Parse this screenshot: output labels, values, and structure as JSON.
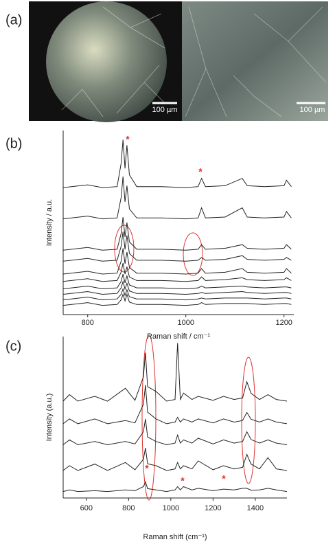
{
  "image_panel": {
    "label": "(a)",
    "scale_bars": [
      "100 µm",
      "100 µm"
    ]
  },
  "chart_data": [
    {
      "type": "line",
      "label": "(b)",
      "x_label": "Raman shift / cm⁻¹",
      "y_label": "Intensity / a.u.",
      "color": "#222222",
      "annotation_color": "#e0302a",
      "annotations": [
        "*",
        "*"
      ],
      "xlim": [
        750,
        1220
      ],
      "xticks": [
        800,
        1000,
        1200
      ],
      "ylim": [
        0,
        10
      ],
      "x": [
        750,
        800,
        830,
        860,
        868,
        872,
        876,
        880,
        885,
        900,
        950,
        1000,
        1025,
        1032,
        1040,
        1080,
        1115,
        1125,
        1160,
        1200,
        1205,
        1215
      ],
      "series": [
        {
          "values": [
            0.5,
            0.65,
            0.5,
            0.55,
            0.8,
            1.1,
            0.74,
            1.1,
            0.68,
            0.55,
            0.55,
            0.5,
            0.55,
            0.65,
            0.55,
            0.6,
            0.6,
            0.6,
            0.55,
            0.6,
            0.6,
            0.55
          ]
        },
        {
          "values": [
            0.8,
            0.95,
            0.8,
            0.85,
            1.1,
            1.4,
            1.04,
            1.35,
            0.97,
            0.85,
            0.85,
            0.8,
            0.85,
            0.9,
            0.85,
            0.9,
            0.9,
            0.9,
            0.85,
            0.9,
            0.9,
            0.85
          ]
        },
        {
          "values": [
            1.1,
            1.25,
            1.1,
            1.15,
            1.45,
            1.8,
            1.38,
            1.7,
            1.28,
            1.15,
            1.15,
            1.1,
            1.15,
            1.2,
            1.15,
            1.2,
            1.25,
            1.2,
            1.15,
            1.2,
            1.2,
            1.15
          ]
        },
        {
          "values": [
            1.4,
            1.55,
            1.4,
            1.45,
            1.8,
            2.2,
            1.72,
            2.1,
            1.61,
            1.45,
            1.45,
            1.4,
            1.45,
            1.55,
            1.45,
            1.5,
            1.55,
            1.5,
            1.45,
            1.5,
            1.5,
            1.45
          ]
        },
        {
          "values": [
            1.8,
            1.95,
            1.8,
            1.85,
            2.3,
            2.8,
            2.2,
            2.6,
            2.04,
            1.85,
            1.85,
            1.8,
            1.85,
            2.05,
            1.85,
            1.9,
            2.0,
            1.9,
            1.85,
            1.9,
            2.0,
            1.85
          ]
        },
        {
          "values": [
            2.2,
            2.35,
            2.2,
            2.25,
            2.9,
            3.6,
            2.76,
            3.4,
            2.56,
            2.25,
            2.25,
            2.2,
            2.25,
            2.5,
            2.25,
            2.3,
            2.5,
            2.3,
            2.25,
            2.3,
            2.5,
            2.25
          ]
        },
        {
          "values": [
            2.9,
            3.05,
            2.9,
            2.95,
            3.7,
            4.5,
            3.54,
            4.3,
            3.32,
            2.95,
            2.95,
            2.9,
            2.95,
            3.1,
            2.95,
            3.0,
            3.2,
            3.0,
            2.95,
            3.0,
            3.1,
            2.95
          ]
        },
        {
          "values": [
            3.5,
            3.65,
            3.5,
            3.55,
            4.4,
            5.3,
            4.22,
            5.0,
            3.95,
            3.55,
            3.55,
            3.5,
            3.55,
            3.8,
            3.55,
            3.6,
            3.8,
            3.6,
            3.55,
            3.6,
            3.8,
            3.55
          ]
        },
        {
          "values": [
            5.2,
            5.35,
            5.2,
            5.25,
            6.35,
            7.5,
            6.12,
            7.0,
            5.74,
            5.25,
            5.25,
            5.2,
            5.25,
            5.8,
            5.25,
            5.3,
            5.8,
            5.3,
            5.25,
            5.3,
            5.6,
            5.25
          ]
        },
        {
          "values": [
            6.9,
            7.05,
            6.9,
            6.95,
            8.2,
            9.5,
            7.94,
            9.2,
            7.59,
            6.95,
            6.95,
            6.9,
            6.95,
            7.4,
            6.95,
            7.0,
            7.4,
            7.0,
            6.95,
            7.0,
            7.3,
            6.95
          ]
        }
      ]
    },
    {
      "type": "line",
      "label": "(c)",
      "x_label": "Raman shift (cm⁻¹)",
      "y_label": "Intensity (a.u.)",
      "color": "#222222",
      "annotation_color": "#e0302a",
      "annotations": [
        "*",
        "*",
        "*"
      ],
      "xlim": [
        490,
        1550
      ],
      "xticks": [
        600,
        800,
        1000,
        1200,
        1400
      ],
      "ylim": [
        0,
        10
      ],
      "x": [
        490,
        520,
        560,
        640,
        700,
        785,
        830,
        870,
        880,
        890,
        930,
        980,
        1020,
        1032,
        1045,
        1060,
        1100,
        1130,
        1200,
        1250,
        1300,
        1340,
        1360,
        1380,
        1420,
        1460,
        1500,
        1550
      ],
      "series": [
        {
          "values": [
            0.4,
            0.5,
            0.4,
            0.45,
            0.4,
            0.5,
            0.45,
            0.7,
            1.0,
            0.58,
            0.5,
            0.4,
            0.5,
            0.7,
            0.5,
            0.7,
            0.5,
            0.6,
            0.45,
            0.55,
            0.5,
            0.6,
            0.6,
            0.48,
            0.5,
            0.6,
            0.5,
            0.4
          ]
        },
        {
          "values": [
            1.7,
            2.0,
            1.7,
            2.1,
            1.7,
            2.2,
            1.75,
            2.4,
            3.1,
            2.12,
            2.0,
            1.7,
            1.8,
            2.2,
            1.8,
            2.0,
            1.8,
            2.3,
            1.75,
            2.0,
            1.8,
            1.9,
            2.7,
            2.1,
            1.8,
            2.5,
            1.8,
            1.7
          ]
        },
        {
          "values": [
            3.3,
            3.6,
            3.3,
            3.5,
            3.3,
            3.5,
            3.35,
            4.1,
            4.9,
            3.78,
            3.5,
            3.3,
            3.4,
            3.9,
            3.4,
            3.6,
            3.4,
            3.7,
            3.35,
            3.6,
            3.4,
            3.5,
            4.1,
            3.62,
            3.4,
            3.6,
            3.4,
            3.3
          ]
        },
        {
          "values": [
            4.6,
            4.9,
            4.6,
            4.9,
            4.6,
            4.8,
            4.65,
            5.8,
            7.0,
            5.32,
            4.9,
            4.6,
            4.7,
            5.0,
            4.7,
            4.9,
            4.7,
            4.9,
            4.65,
            4.9,
            4.7,
            4.8,
            5.3,
            4.88,
            4.7,
            4.9,
            4.7,
            4.6
          ]
        },
        {
          "values": [
            6.0,
            6.4,
            6.0,
            6.3,
            6.0,
            6.8,
            6.05,
            7.5,
            9.0,
            6.9,
            6.6,
            6.0,
            6.1,
            9.6,
            6.1,
            6.5,
            6.1,
            6.3,
            6.05,
            6.3,
            6.1,
            6.2,
            7.2,
            6.48,
            6.1,
            6.4,
            6.1,
            6.0
          ]
        }
      ]
    }
  ]
}
